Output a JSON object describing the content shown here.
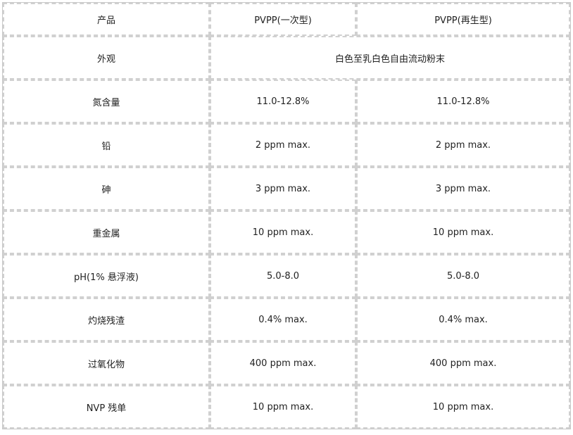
{
  "header": [
    "产品",
    "PVPP(一次型)",
    "PVPP(再生型)"
  ],
  "appearance": {
    "label": "外观",
    "value": "白色至乳白色自由流动粉末"
  },
  "rows": [
    {
      "label": "氮含量",
      "v1": "11.0-12.8%",
      "v2": "11.0-12.8%"
    },
    {
      "label": "铅",
      "v1": "2 ppm max.",
      "v2": "2 ppm max."
    },
    {
      "label": "砷",
      "v1": "3 ppm max.",
      "v2": "3 ppm max."
    },
    {
      "label": "重金属",
      "v1": "10 ppm max.",
      "v2": "10 ppm max."
    },
    {
      "label": "pH(1%  悬浮液)",
      "v1": "5.0-8.0",
      "v2": "5.0-8.0"
    },
    {
      "label": "灼烧残渣",
      "v1": "0.4% max.",
      "v2": "0.4% max."
    },
    {
      "label": "过氧化物",
      "v1": "400 ppm max.",
      "v2": "400 ppm max."
    },
    {
      "label": "NVP 残单",
      "v1": "10 ppm max.",
      "v2": "10 ppm max."
    }
  ]
}
